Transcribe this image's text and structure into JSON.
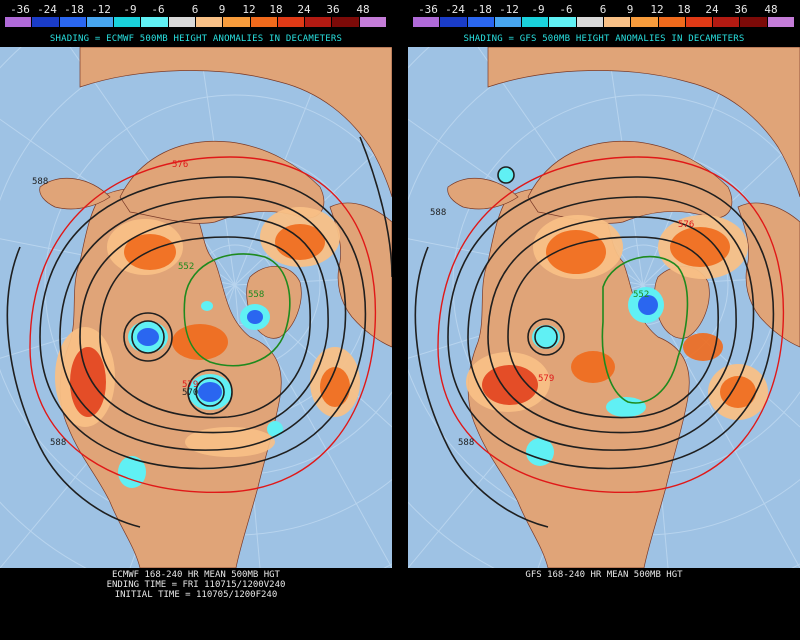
{
  "scale": {
    "labels": [
      "-36",
      "-24",
      "-18",
      "-12",
      "-9",
      "-6",
      "6",
      "9",
      "12",
      "18",
      "24",
      "36",
      "48"
    ],
    "colors": [
      "#b06ad8",
      "#1a3cc8",
      "#2a66f0",
      "#48a6f0",
      "#1ad2dc",
      "#60f0f4",
      "#d8d8d8",
      "#f8c086",
      "#f89c3c",
      "#f06a1c",
      "#e03a16",
      "#b21a12",
      "#7c0a08",
      "#c47cd8"
    ]
  },
  "left": {
    "subtitle": "SHADING = ECMWF 500MB HEIGHT ANOMALIES IN DECAMETERS",
    "bottom_lines": [
      "ECMWF 168-240 HR MEAN 500MB HGT",
      "ENDING TIME = FRI 110715/1200V240",
      "INITIAL TIME = 110705/1200F240"
    ],
    "contour_labels": {
      "c588a": "588",
      "c576": "576",
      "c588b": "588",
      "c552": "552",
      "c570": "570",
      "c579": "579",
      "c558": "558"
    }
  },
  "right": {
    "subtitle": "SHADING = GFS 500MB HEIGHT ANOMALIES IN DECAMETERS",
    "bottom_lines": [
      "GFS 168-240 HR MEAN 500MB HGT"
    ],
    "contour_labels": {
      "c588a": "588",
      "c576": "576",
      "c552": "552",
      "c579": "579",
      "c588b": "588"
    }
  },
  "colors": {
    "ocean": "#9ec2e4",
    "land": "#e0a478",
    "grid": "#b8d4ee",
    "contour": "#1f1f1f",
    "red_contour": "#e01818",
    "green_contour": "#1e8a1e",
    "cyan_text": "#29e0e0"
  }
}
